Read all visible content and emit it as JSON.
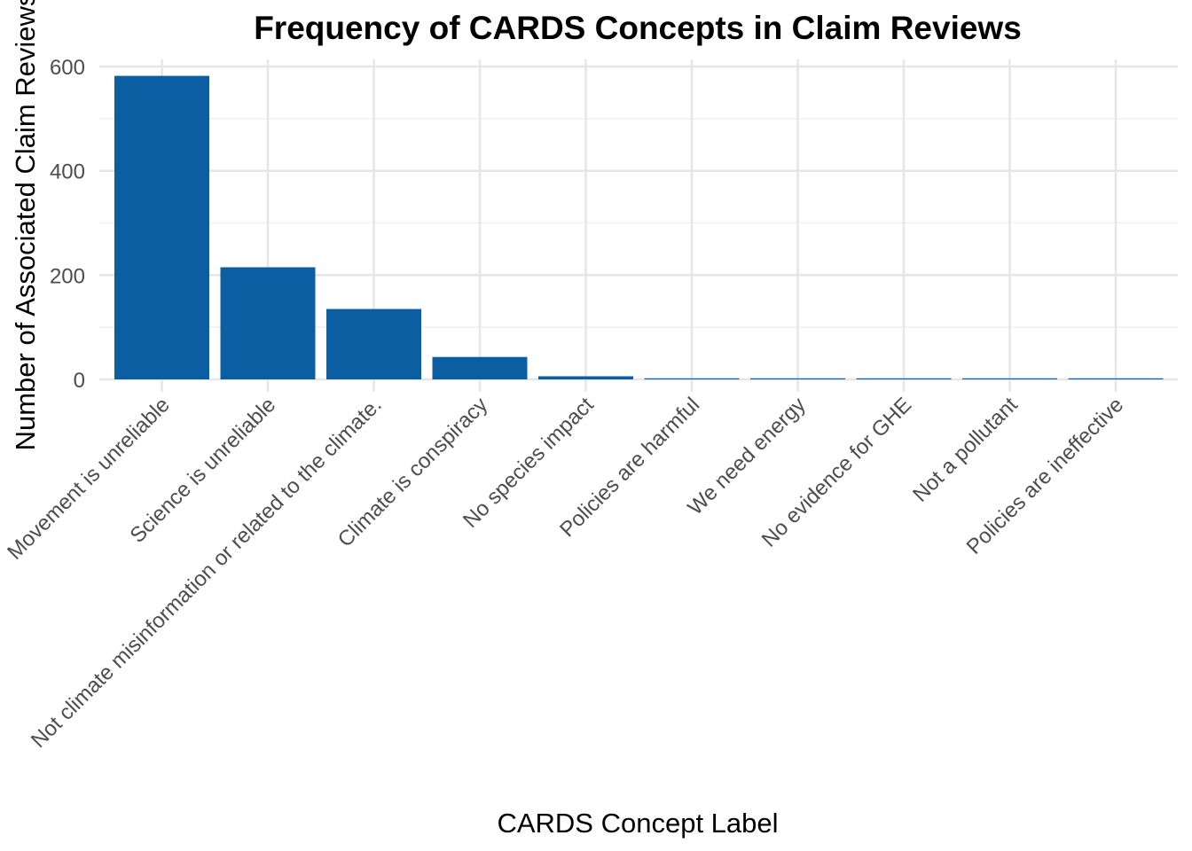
{
  "chart_data": {
    "type": "bar",
    "title": "Frequency of CARDS Concepts in Claim Reviews",
    "xlabel": "CARDS Concept Label",
    "ylabel": "Number of Associated Claim Reviews",
    "categories": [
      "Movement is unreliable",
      "Science is unreliable",
      "Not climate misinformation or related to the climate.",
      "Climate is conspiracy",
      "No species impact",
      "Policies are harmful",
      "We need energy",
      "No evidence for GHE",
      "Not a pollutant",
      "Policies are ineffective"
    ],
    "values": [
      582,
      215,
      135,
      43,
      6,
      1,
      1,
      1,
      1,
      1
    ],
    "ylim": [
      0,
      600
    ],
    "yticks": [
      0,
      200,
      400,
      600
    ],
    "grid": true,
    "bar_color": "#0b5ea2",
    "legend": "none"
  }
}
